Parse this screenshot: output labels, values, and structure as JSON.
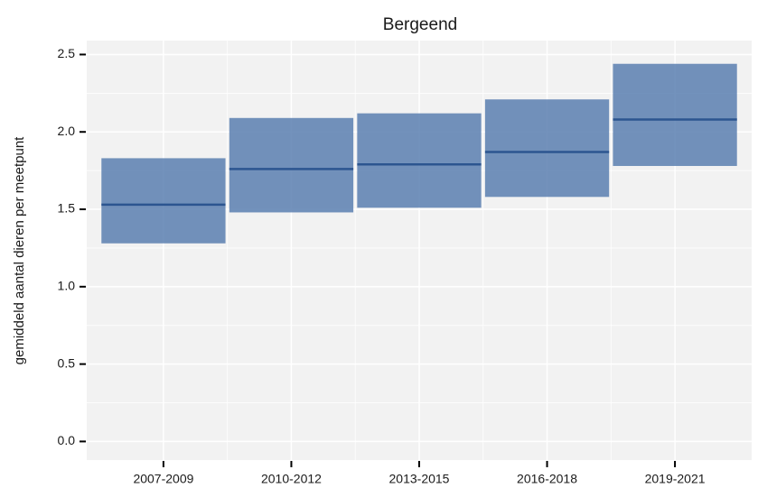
{
  "chart_data": {
    "type": "crossbar",
    "title": "Bergeend",
    "ylabel": "gemiddeld aantal dieren per meetpunt",
    "categories": [
      "2007-2009",
      "2010-2012",
      "2013-2015",
      "2016-2018",
      "2019-2021"
    ],
    "lower": [
      1.28,
      1.48,
      1.51,
      1.58,
      1.78
    ],
    "values": [
      1.53,
      1.76,
      1.79,
      1.87,
      2.08
    ],
    "upper": [
      1.83,
      2.09,
      2.12,
      2.21,
      2.44
    ],
    "color": "#5a7fb0",
    "line_color": "#2c5590",
    "ylim": [
      -0.12,
      2.59
    ],
    "yticks": [
      {
        "value": 0,
        "label": "0.0"
      },
      0.5,
      {
        "value": 1,
        "label": "1.0"
      },
      1.5,
      {
        "value": 2,
        "label": "2.0"
      },
      2.5
    ],
    "grid": true
  }
}
